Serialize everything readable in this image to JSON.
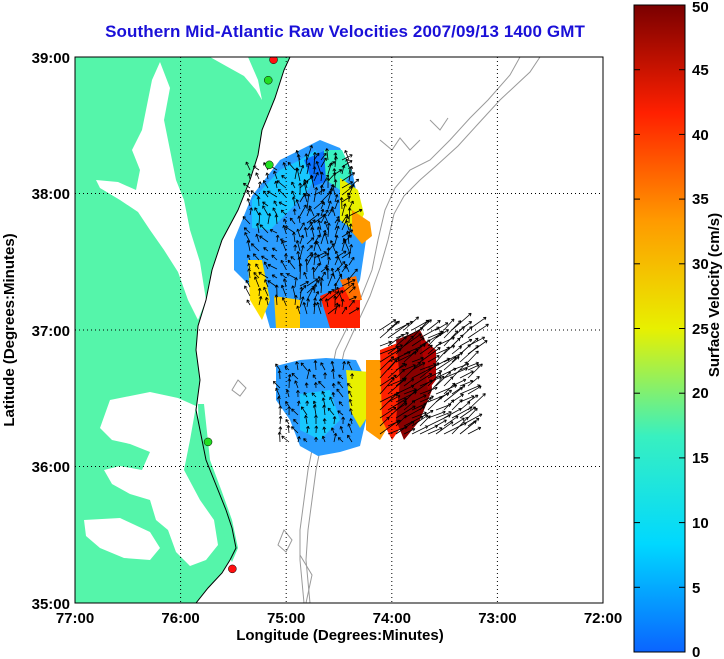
{
  "title": "Southern Mid-Atlantic Raw Velocities 2007/09/13 1400 GMT",
  "x_axis": {
    "label": "Longitude (Degrees:Minutes)",
    "ticks": [
      "77:00",
      "76:00",
      "75:00",
      "74:00",
      "73:00",
      "72:00"
    ]
  },
  "y_axis": {
    "label": "Latitude (Degrees:Minutes)",
    "ticks": [
      "39:00",
      "38:00",
      "37:00",
      "36:00",
      "35:00"
    ]
  },
  "colorbar": {
    "label": "Surface Velocity (cm/s)",
    "ticks": [
      "0",
      "5",
      "10",
      "15",
      "20",
      "25",
      "30",
      "35",
      "40",
      "45",
      "50"
    ],
    "min": 0,
    "max": 50,
    "colors": [
      "#0a64ff",
      "#00d8ff",
      "#38f0c0",
      "#e8f000",
      "#ff9a00",
      "#ff2000",
      "#7a0000"
    ]
  },
  "map_colors": {
    "land": "#55f5aa",
    "water": "#ffffff",
    "bathymetry": "#9a9a9a",
    "station": "#ff1010",
    "station_alt": "#22dd22"
  },
  "stations": [
    {
      "lon": -75.12,
      "lat": 38.98,
      "color": "#ff1010"
    },
    {
      "lon": -75.17,
      "lat": 38.83,
      "color": "#22dd22"
    },
    {
      "lon": -75.16,
      "lat": 38.21,
      "color": "#22dd22"
    },
    {
      "lon": -75.74,
      "lat": 36.18,
      "color": "#22dd22"
    },
    {
      "lon": -75.51,
      "lat": 35.25,
      "color": "#ff1010"
    }
  ]
}
